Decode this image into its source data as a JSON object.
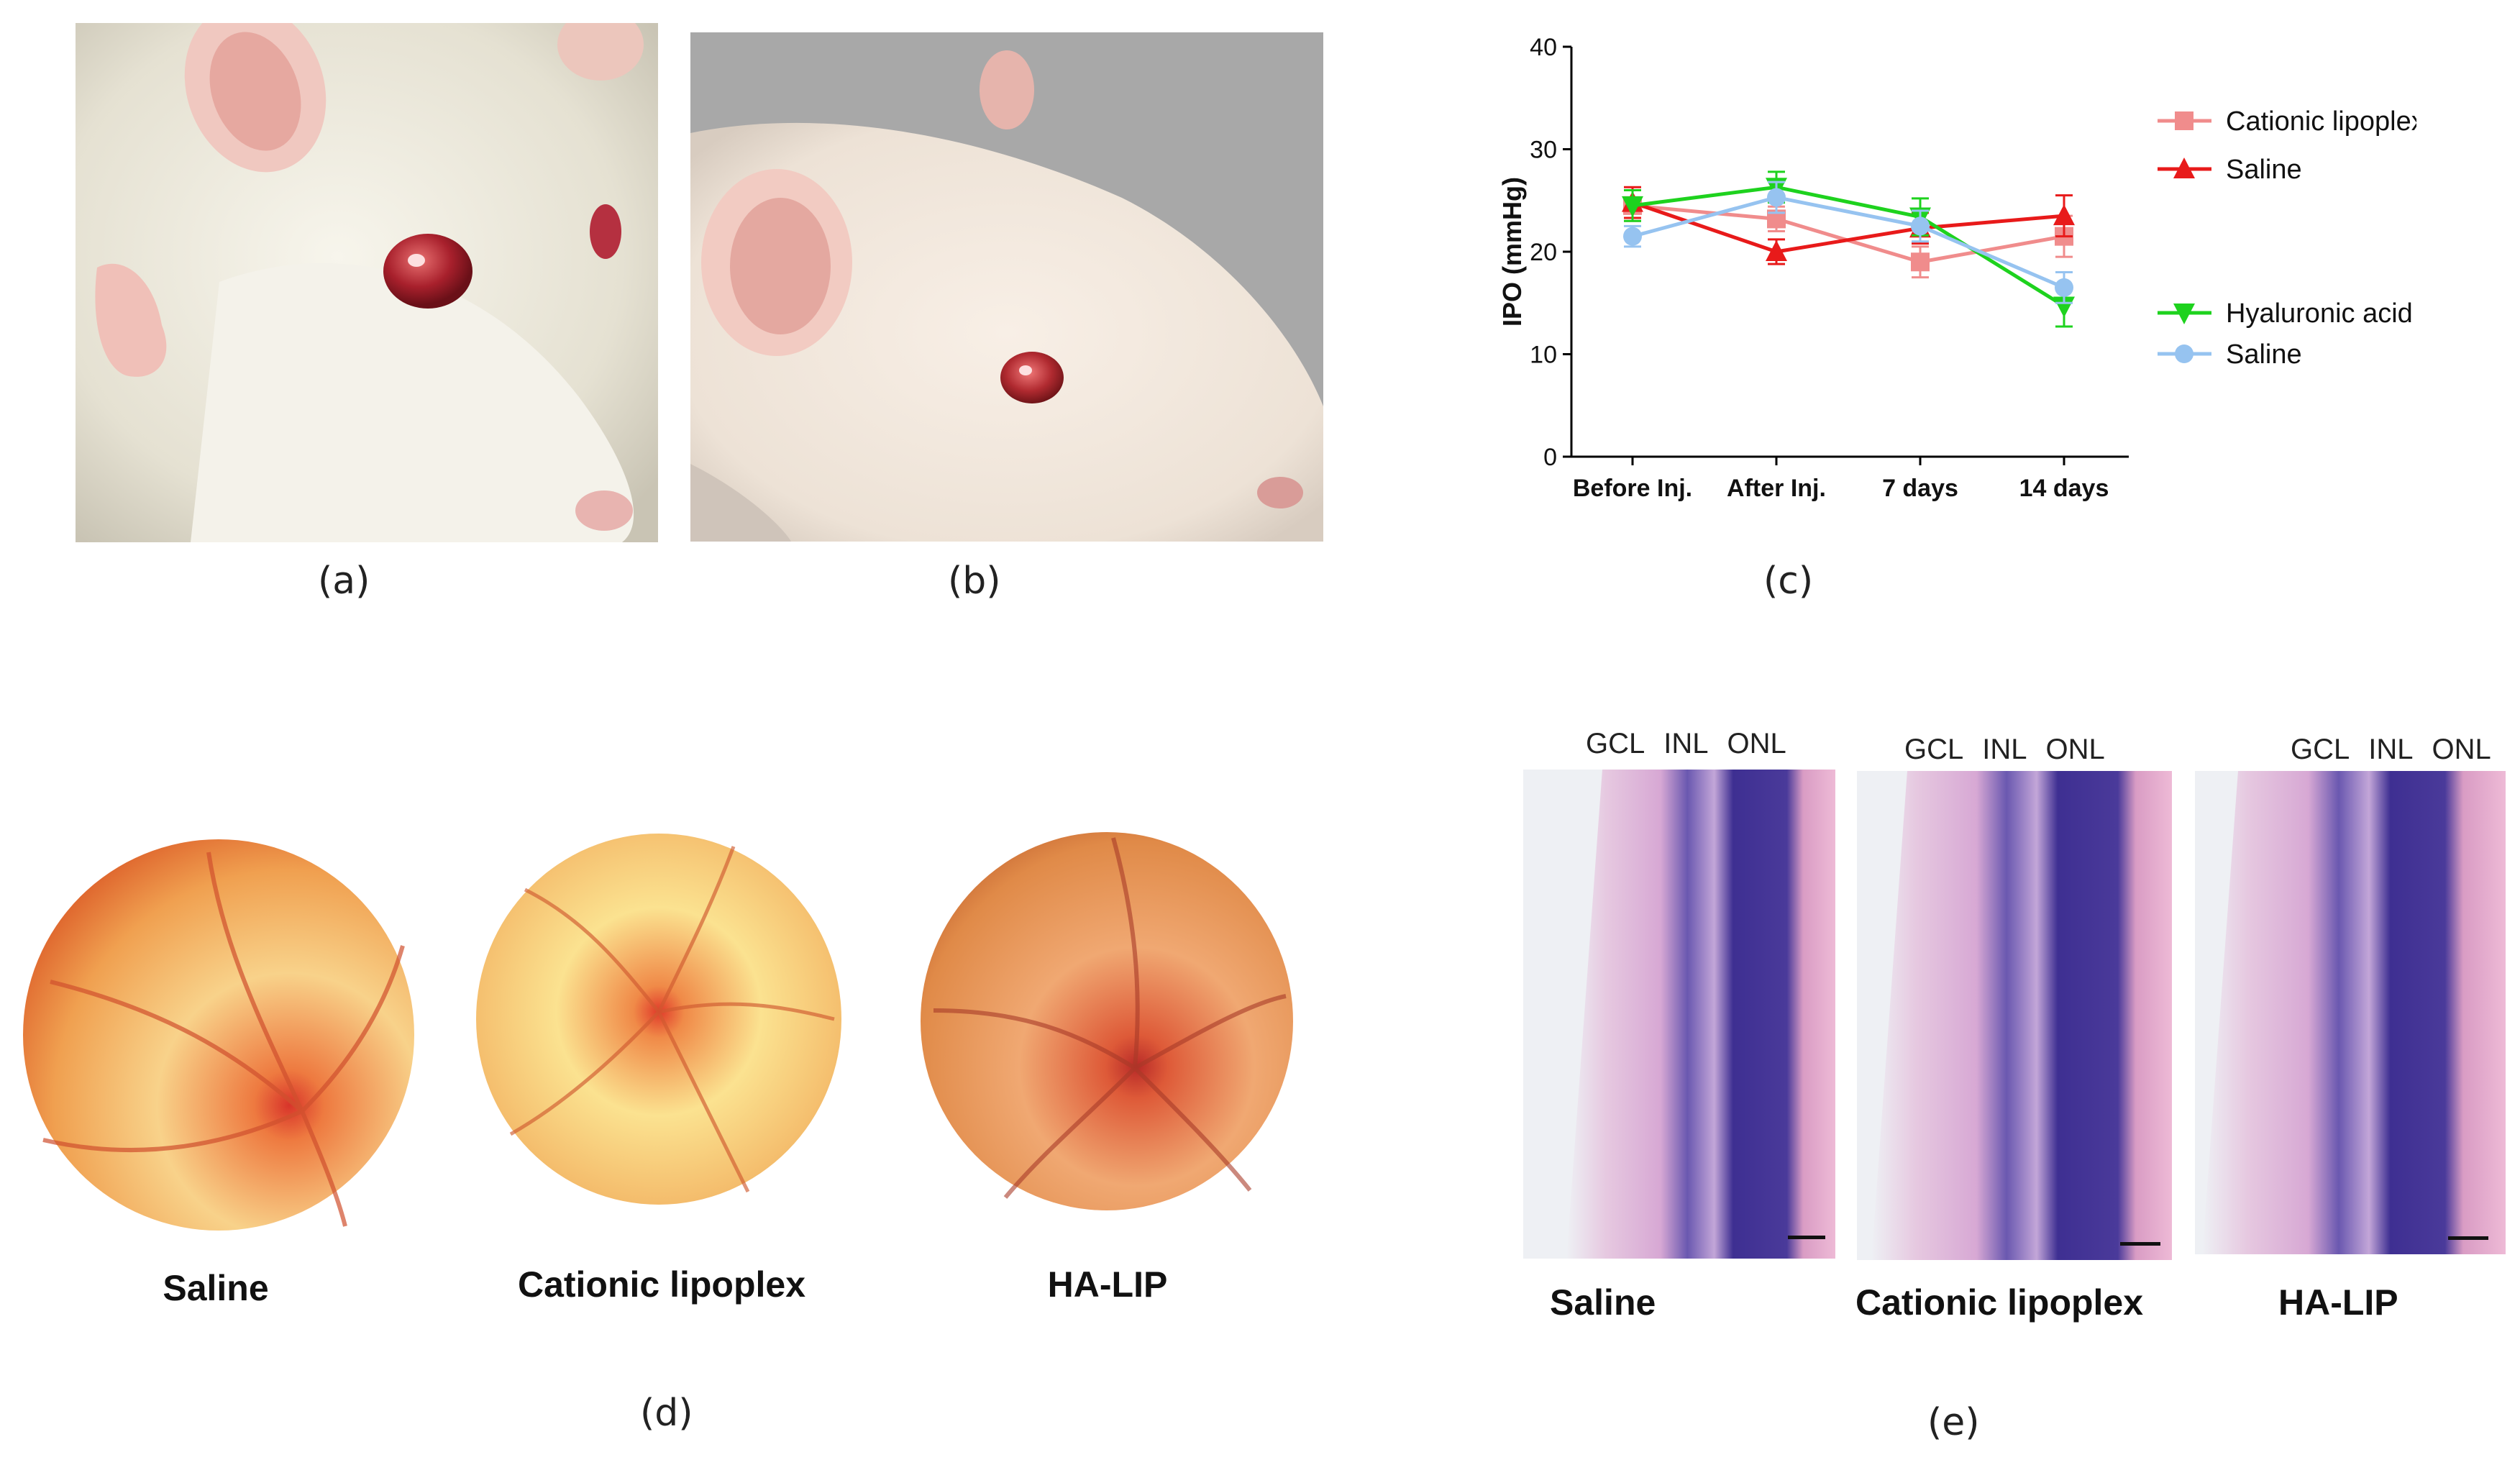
{
  "panels": {
    "a": {
      "label": "(a)"
    },
    "b": {
      "label": "(b)"
    },
    "c": {
      "label": "(c)"
    },
    "d": {
      "label": "(d)",
      "captions": [
        "Saline",
        "Cationic lipoplex",
        "HA-LIP"
      ]
    },
    "e": {
      "label": "(e)",
      "captions": [
        "Saline",
        "Cationic lipoplex",
        "HA-LIP"
      ],
      "layers": [
        "GCL",
        "INL",
        "ONL"
      ]
    }
  },
  "chart_data": {
    "type": "line",
    "title": "",
    "xlabel": "",
    "ylabel": "IPO (mmHg)",
    "ylim": [
      0,
      40
    ],
    "yticks": [
      0,
      10,
      20,
      30,
      40
    ],
    "categories": [
      "Before Inj.",
      "After Inj.",
      "7 days",
      "14 days"
    ],
    "series": [
      {
        "name": "Cationic lipoplex",
        "color": "#f08c8c",
        "marker": "square",
        "values": [
          24.5,
          23.2,
          19,
          21.5
        ],
        "err": [
          1.5,
          1.2,
          1.5,
          2.0
        ]
      },
      {
        "name": "Saline",
        "color": "#e81a1a",
        "marker": "triangle-up",
        "values": [
          24.8,
          20,
          22.3,
          23.5
        ],
        "err": [
          1.5,
          1.2,
          1.5,
          2.0
        ]
      },
      {
        "name": "Hyaluronic acid",
        "color": "#1ed21e",
        "marker": "triangle-down",
        "values": [
          24.5,
          26.3,
          23.4,
          14.7
        ],
        "err": [
          1.5,
          1.5,
          1.8,
          2.0
        ]
      },
      {
        "name": "Saline",
        "color": "#96c3f0",
        "marker": "circle",
        "values": [
          21.5,
          25.3,
          22.5,
          16.5
        ],
        "err": [
          1.0,
          1.5,
          1.5,
          1.5
        ]
      }
    ]
  },
  "colors": {
    "rat_fur": "#ece9dc",
    "rat_eye": "#b0303a",
    "fundus_base": "#f5b86a",
    "fundus_red": "#d8342a",
    "histo_pink": "#e8a4c8",
    "histo_purple": "#4a3a9a"
  }
}
